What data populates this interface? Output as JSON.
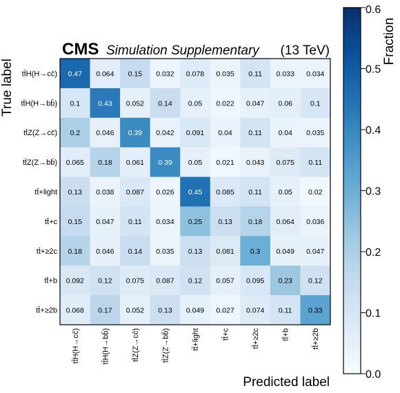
{
  "chart_data": {
    "type": "heatmap",
    "title_bold": "CMS",
    "title_italic": "Simulation Supplementary",
    "title_energy": "(13 TeV)",
    "xlabel": "Predicted label",
    "ylabel": "True label",
    "colorbar_label": "Fraction",
    "colorbar_range": [
      0.0,
      0.6
    ],
    "colorbar_ticks": [
      "0.0",
      "0.1",
      "0.2",
      "0.3",
      "0.4",
      "0.5",
      "0.6"
    ],
    "colors": {
      "low": "#f7fbff",
      "high": "#08306b"
    },
    "row_labels": [
      "tt̄H(H→cc̄)",
      "tt̄H(H→bb̄)",
      "tt̄Z(Z→cc̄)",
      "tt̄Z(Z→bb̄)",
      "tt̄+light",
      "tt̄+c",
      "tt̄+≥2c",
      "tt̄+b",
      "tt̄+≥2b"
    ],
    "col_labels": [
      "tt̄H(H→cc̄)",
      "tt̄H(H→bb̄)",
      "tt̄Z(Z→cc̄)",
      "tt̄Z(Z→bb̄)",
      "tt̄+light",
      "tt̄+c",
      "tt̄+≥2c",
      "tt̄+b",
      "tt̄+≥2b"
    ],
    "values": [
      [
        0.47,
        0.064,
        0.15,
        0.032,
        0.078,
        0.035,
        0.11,
        0.033,
        0.034
      ],
      [
        0.1,
        0.43,
        0.052,
        0.14,
        0.05,
        0.022,
        0.047,
        0.06,
        0.1
      ],
      [
        0.2,
        0.046,
        0.39,
        0.042,
        0.091,
        0.04,
        0.11,
        0.04,
        0.035
      ],
      [
        0.065,
        0.18,
        0.061,
        0.39,
        0.05,
        0.021,
        0.043,
        0.075,
        0.11
      ],
      [
        0.13,
        0.038,
        0.087,
        0.026,
        0.45,
        0.085,
        0.11,
        0.05,
        0.02
      ],
      [
        0.15,
        0.047,
        0.11,
        0.034,
        0.25,
        0.13,
        0.18,
        0.064,
        0.036
      ],
      [
        0.18,
        0.046,
        0.14,
        0.035,
        0.13,
        0.081,
        0.3,
        0.049,
        0.047
      ],
      [
        0.092,
        0.12,
        0.075,
        0.087,
        0.12,
        0.057,
        0.095,
        0.23,
        0.12
      ],
      [
        0.068,
        0.17,
        0.052,
        0.13,
        0.049,
        0.027,
        0.074,
        0.11,
        0.33
      ]
    ]
  }
}
